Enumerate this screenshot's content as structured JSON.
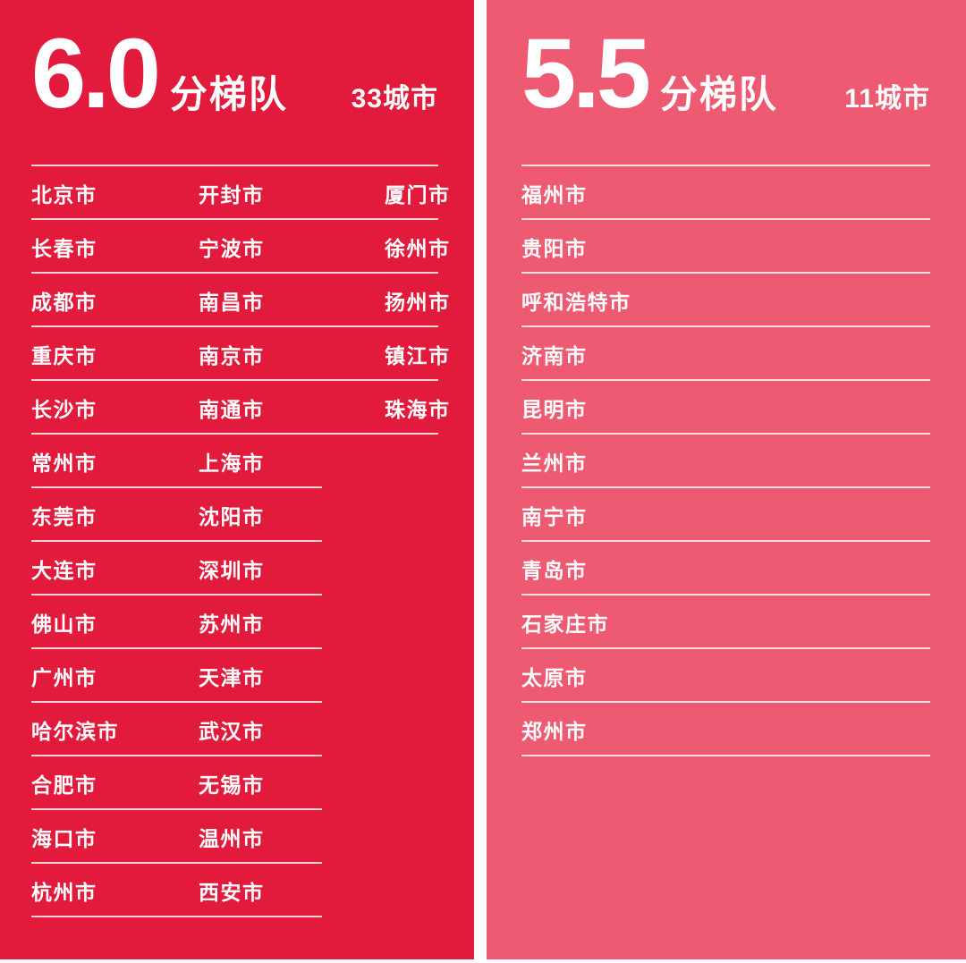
{
  "colors": {
    "tier_60_bg": "#e21b3c",
    "tier_55_bg": "#ee5a72",
    "divider": "rgba(255,255,255,0.8)",
    "text": "#ffffff",
    "page_bg": "#ffffff"
  },
  "panels": [
    {
      "score": "6.0",
      "tier_label": "分梯队",
      "count_label": "33城市",
      "bg": "colors_ref_tier_60",
      "rows": [
        [
          "北京市",
          "开封市",
          "厦门市"
        ],
        [
          "长春市",
          "宁波市",
          "徐州市"
        ],
        [
          "成都市",
          "南昌市",
          "扬州市"
        ],
        [
          "重庆市",
          "南京市",
          "镇江市"
        ],
        [
          "长沙市",
          "南通市",
          "珠海市"
        ],
        [
          "常州市",
          "上海市"
        ],
        [
          "东莞市",
          "沈阳市"
        ],
        [
          "大连市",
          "深圳市"
        ],
        [
          "佛山市",
          "苏州市"
        ],
        [
          "广州市",
          "天津市"
        ],
        [
          "哈尔滨市",
          "武汉市"
        ],
        [
          "合肥市",
          "无锡市"
        ],
        [
          "海口市",
          "温州市"
        ],
        [
          "杭州市",
          "西安市"
        ]
      ]
    },
    {
      "score": "5.5",
      "tier_label": "分梯队",
      "count_label": "11城市",
      "bg": "colors_ref_tier_55",
      "rows": [
        [
          "福州市"
        ],
        [
          "贵阳市"
        ],
        [
          "呼和浩特市"
        ],
        [
          "济南市"
        ],
        [
          "昆明市"
        ],
        [
          "兰州市"
        ],
        [
          "南宁市"
        ],
        [
          "青岛市"
        ],
        [
          "石家庄市"
        ],
        [
          "太原市"
        ],
        [
          "郑州市"
        ]
      ]
    }
  ],
  "chart_data": [
    {
      "type": "table",
      "title": "6.0分梯队",
      "subtitle": "33城市",
      "cities": [
        "北京市",
        "长春市",
        "成都市",
        "重庆市",
        "长沙市",
        "常州市",
        "东莞市",
        "大连市",
        "佛山市",
        "广州市",
        "哈尔滨市",
        "合肥市",
        "海口市",
        "杭州市",
        "开封市",
        "宁波市",
        "南昌市",
        "南京市",
        "南通市",
        "上海市",
        "沈阳市",
        "深圳市",
        "苏州市",
        "天津市",
        "武汉市",
        "无锡市",
        "温州市",
        "西安市",
        "厦门市",
        "徐州市",
        "扬州市",
        "镇江市",
        "珠海市"
      ]
    },
    {
      "type": "table",
      "title": "5.5分梯队",
      "subtitle": "11城市",
      "cities": [
        "福州市",
        "贵阳市",
        "呼和浩特市",
        "济南市",
        "昆明市",
        "兰州市",
        "南宁市",
        "青岛市",
        "石家庄市",
        "太原市",
        "郑州市"
      ]
    }
  ]
}
